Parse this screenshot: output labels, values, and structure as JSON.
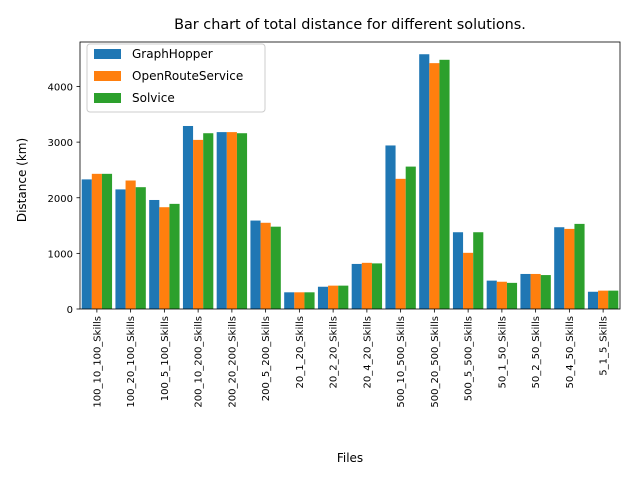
{
  "chart_data": {
    "type": "bar",
    "title": "Bar chart of total distance for different solutions.",
    "xlabel": "Files",
    "ylabel": "Distance (km)",
    "ylim": [
      0,
      4800
    ],
    "yticks": [
      0,
      1000,
      2000,
      3000,
      4000
    ],
    "grid": false,
    "legend_position": "top-left",
    "categories": [
      "100_10_100_Skills",
      "100_20_100_Skills",
      "100_5_100_Skills",
      "200_10_200_Skills",
      "200_20_200_Skills",
      "200_5_200_Skills",
      "20_1_20_Skills",
      "20_2_20_Skills",
      "20_4_20_Skills",
      "500_10_500_Skills",
      "500_20_500_Skills",
      "500_5_500_Skills",
      "50_1_50_Skills",
      "50_2_50_Skills",
      "50_4_50_Skills",
      "5_1_5_Skills"
    ],
    "series": [
      {
        "name": "GraphHopper",
        "color": "#1f77b4",
        "values": [
          2330,
          2150,
          1960,
          3290,
          3180,
          1590,
          300,
          400,
          810,
          2940,
          4580,
          1380,
          510,
          630,
          1470,
          310
        ]
      },
      {
        "name": "OpenRouteService",
        "color": "#ff7f0e",
        "values": [
          2430,
          2310,
          1830,
          3040,
          3180,
          1550,
          300,
          420,
          830,
          2340,
          4420,
          1010,
          490,
          630,
          1440,
          330
        ]
      },
      {
        "name": "Solvice",
        "color": "#2ca02c",
        "values": [
          2430,
          2190,
          1890,
          3160,
          3160,
          1480,
          300,
          420,
          820,
          2560,
          4480,
          1380,
          470,
          610,
          1530,
          330
        ]
      }
    ]
  }
}
